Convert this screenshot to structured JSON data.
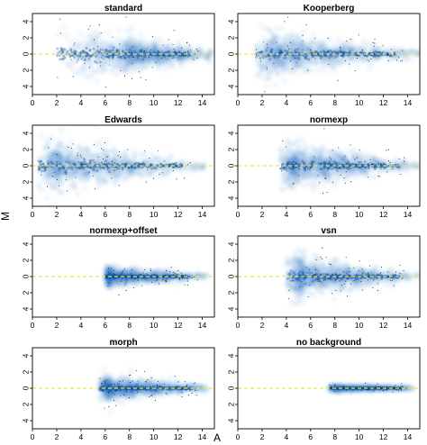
{
  "chart_data": {
    "type": "scatter",
    "xlabel": "A",
    "ylabel": "M",
    "xticks": [
      0,
      2,
      4,
      6,
      8,
      10,
      12,
      14
    ],
    "yticks": [
      -4,
      -2,
      0,
      2,
      4
    ],
    "yticklabels": [
      "4",
      "2",
      "0",
      "2",
      "4"
    ],
    "xlim": [
      0,
      15
    ],
    "ylim": [
      -5,
      5
    ],
    "reference_line": {
      "y": 0,
      "style": "dashed",
      "color": "#e8e84a"
    },
    "point_color": "#1f6fc4",
    "panels": [
      {
        "title": "standard",
        "a_range": [
          2,
          15
        ],
        "peak_a": 7.5,
        "m_spread_low": 3.5,
        "m_spread_high": 0.6
      },
      {
        "title": "Kooperberg",
        "a_range": [
          1.5,
          15
        ],
        "peak_a": 3.5,
        "m_spread_low": 3.0,
        "m_spread_high": 0.4
      },
      {
        "title": "Edwards",
        "a_range": [
          0.5,
          14.5
        ],
        "peak_a": 2.5,
        "m_spread_low": 3.5,
        "m_spread_high": 0.4
      },
      {
        "title": "normexp",
        "a_range": [
          3.5,
          15
        ],
        "peak_a": 5.0,
        "m_spread_low": 3.0,
        "m_spread_high": 0.4
      },
      {
        "title": "normexp+offset",
        "a_range": [
          6,
          14.5
        ],
        "peak_a": 6.5,
        "m_spread_low": 1.2,
        "m_spread_high": 0.3
      },
      {
        "title": "vsn",
        "a_range": [
          4,
          15
        ],
        "peak_a": 5.5,
        "m_spread_low": 2.8,
        "m_spread_high": 0.4
      },
      {
        "title": "morph",
        "a_range": [
          5.5,
          14.5
        ],
        "peak_a": 6.5,
        "m_spread_low": 1.6,
        "m_spread_high": 0.4
      },
      {
        "title": "no background",
        "a_range": [
          7.5,
          14.5
        ],
        "peak_a": 8.5,
        "m_spread_low": 0.4,
        "m_spread_high": 0.15
      }
    ]
  }
}
